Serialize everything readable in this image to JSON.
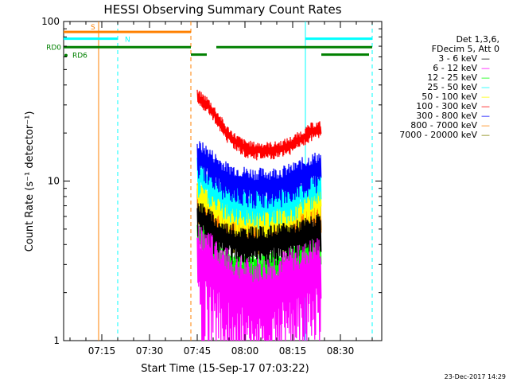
{
  "chart_data": {
    "type": "line",
    "title": "HESSI Observing Summary Count Rates",
    "xlabel": "Start Time (15-Sep-17 07:03:22)",
    "ylabel": "Count Rate (s⁻¹ detector⁻¹)",
    "yscale": "log",
    "ylim": [
      1,
      100
    ],
    "xlim": [
      "07:03",
      "08:43"
    ],
    "x_ticks": [
      "07:15",
      "07:30",
      "07:45",
      "08:00",
      "08:15",
      "08:30"
    ],
    "y_ticks": [
      "1",
      "10",
      "100"
    ],
    "grid": false,
    "legend_position": "top-right",
    "legend_header": [
      "Det 1,3,6,",
      "FDecim 5, Att 0"
    ],
    "legend_swatches": [
      "—",
      "—",
      "—",
      "—",
      "—",
      "—",
      "—",
      "—",
      "—"
    ],
    "timestamp": "23-Dec-2017 14:29",
    "flags": [
      {
        "label": "S",
        "color": "#ff8000",
        "y": 86,
        "segments": [
          [
            "07:03",
            "07:14"
          ],
          [
            "07:14",
            "07:43"
          ]
        ]
      },
      {
        "label": "N",
        "color": "#00ffff",
        "y": 78,
        "segments": [
          [
            "07:03",
            "07:20"
          ],
          [
            "08:19",
            "08:40"
          ]
        ]
      },
      {
        "label": "RD0",
        "color": "#008000",
        "y": 69,
        "segments": [
          [
            "07:03",
            "07:43"
          ],
          [
            "07:51",
            "08:23"
          ],
          [
            "08:23",
            "08:40"
          ]
        ]
      },
      {
        "label": "RD6",
        "color": "#008000",
        "y": 62,
        "segments": [
          [
            "07:43",
            "07:48"
          ],
          [
            "08:24",
            "08:39"
          ]
        ]
      }
    ],
    "vlines": [
      {
        "x": "07:14",
        "color": "#ff8000",
        "style": "solid"
      },
      {
        "x": "07:20",
        "color": "#00ffff",
        "style": "dashed"
      },
      {
        "x": "07:43",
        "color": "#ff8000",
        "style": "dashed"
      },
      {
        "x": "08:19",
        "color": "#00ffff",
        "style": "solid"
      },
      {
        "x": "08:40",
        "color": "#00ffff",
        "style": "dashed"
      }
    ],
    "series_x": [
      "07:45",
      "07:48",
      "07:51",
      "07:54",
      "07:57",
      "08:00",
      "08:03",
      "08:06",
      "08:09",
      "08:12",
      "08:15",
      "08:18",
      "08:21",
      "08:24"
    ],
    "series": [
      {
        "name": "3 - 6 keV",
        "color": "#000000",
        "values": [
          6.0,
          5.4,
          4.6,
          4.3,
          4.1,
          4.0,
          4.0,
          4.0,
          4.1,
          4.2,
          4.3,
          4.5,
          4.7,
          4.8
        ]
      },
      {
        "name": "6 - 12 keV",
        "color": "#ff00ff",
        "values": [
          3.0,
          2.8,
          2.5,
          2.2,
          2.0,
          1.9,
          1.9,
          1.9,
          2.0,
          2.1,
          2.2,
          2.3,
          2.5,
          2.6
        ]
      },
      {
        "name": "12 - 25 keV",
        "color": "#00ff00",
        "values": [
          4.5,
          4.0,
          3.4,
          3.0,
          2.8,
          2.7,
          2.7,
          2.7,
          2.8,
          2.9,
          3.1,
          3.4,
          3.7,
          3.9
        ]
      },
      {
        "name": "25 - 50 keV",
        "color": "#00ffff",
        "values": [
          11.0,
          9.6,
          8.4,
          7.8,
          7.4,
          7.2,
          7.0,
          7.0,
          7.1,
          7.4,
          7.8,
          8.4,
          9.2,
          9.6
        ]
      },
      {
        "name": "50 - 100 keV",
        "color": "#ffff00",
        "values": [
          8.5,
          7.6,
          6.8,
          6.3,
          6.0,
          5.8,
          5.7,
          5.7,
          5.8,
          6.0,
          6.3,
          6.8,
          7.3,
          7.6
        ]
      },
      {
        "name": "100 - 300 keV",
        "color": "#ff0000",
        "values": [
          33.0,
          30.0,
          25.0,
          20.0,
          17.5,
          16.0,
          15.5,
          15.5,
          15.5,
          16.0,
          17.0,
          18.5,
          20.5,
          21.0
        ]
      },
      {
        "name": "300 - 800 keV",
        "color": "#0000ff",
        "values": [
          14.0,
          13.0,
          11.5,
          10.2,
          9.8,
          9.5,
          9.3,
          9.3,
          9.4,
          9.6,
          10.0,
          10.8,
          11.5,
          12.0
        ]
      },
      {
        "name": "800 - 7000 keV",
        "color": "#ff8000",
        "values": [
          7.5,
          6.6,
          5.8,
          5.4,
          5.2,
          5.0,
          4.9,
          4.9,
          5.0,
          5.2,
          5.4,
          5.8,
          6.2,
          6.4
        ]
      },
      {
        "name": "7000 - 20000 keV",
        "color": "#808000",
        "values": [
          7.0,
          6.2,
          5.5,
          5.1,
          4.9,
          4.8,
          4.7,
          4.7,
          4.8,
          5.0,
          5.2,
          5.6,
          6.0,
          6.2
        ]
      }
    ]
  }
}
